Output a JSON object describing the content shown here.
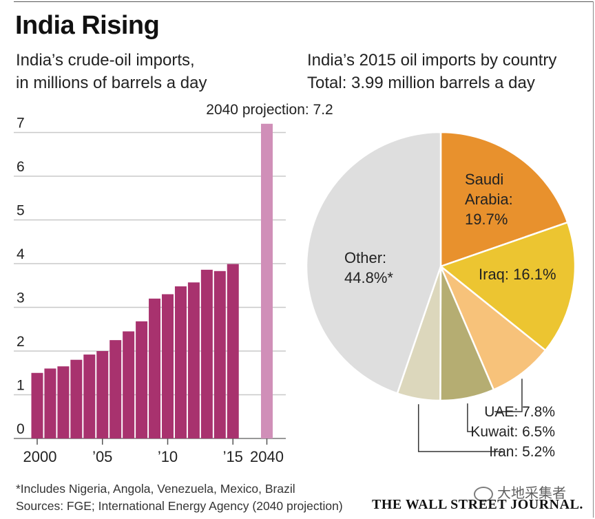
{
  "title": "India Rising",
  "left_subtitle": [
    "India’s crude-oil imports,",
    "in millions of barrels a day"
  ],
  "right_subtitle": [
    "India’s 2015 oil imports by country",
    "Total: 3.99 million barrels a day"
  ],
  "footnote": "*Includes Nigeria, Angola, Venezuela, Mexico, Brazil",
  "sources": "Sources: FGE; International Energy Agency (2040 projection)",
  "publisher": "THE WALL STREET JOURNAL.",
  "watermark": "大地采集者",
  "colors": {
    "bar": "#a8326e",
    "projection_bar": "#d08fb8",
    "grid": "#c8c8c8",
    "saudi": "#e8912d",
    "iraq": "#ecc531",
    "uae": "#f7c27a",
    "kuwait": "#b5ad72",
    "iran": "#dcd7bc",
    "other": "#dedede"
  },
  "chart_data": [
    {
      "type": "bar",
      "title": "India’s crude-oil imports, in millions of barrels a day",
      "x": [
        2000,
        2001,
        2002,
        2003,
        2004,
        2005,
        2006,
        2007,
        2008,
        2009,
        2010,
        2011,
        2012,
        2013,
        2014,
        2015
      ],
      "values": [
        1.5,
        1.6,
        1.65,
        1.8,
        1.92,
        2.0,
        2.25,
        2.45,
        2.68,
        3.2,
        3.3,
        3.48,
        3.57,
        3.86,
        3.83,
        3.99
      ],
      "projection": {
        "x": 2040,
        "value": 7.2,
        "label": "2040 projection: 7.2"
      },
      "y_ticks": [
        "0",
        "1",
        "2",
        "3",
        "4",
        "5",
        "6",
        "7"
      ],
      "x_tick_labels": [
        {
          "label": "2000",
          "x": 2000
        },
        {
          "label": "’05",
          "x": 2005
        },
        {
          "label": "’10",
          "x": 2010
        },
        {
          "label": "’15",
          "x": 2015
        },
        {
          "label": "2040",
          "x": 2040
        }
      ],
      "ylim": [
        0,
        7.2
      ],
      "grid": true
    },
    {
      "type": "pie",
      "title": "India’s 2015 oil imports by country",
      "total_label": "Total: 3.99 million barrels a day",
      "slices": [
        {
          "name": "Saudi Arabia",
          "value": 19.7,
          "label": [
            "Saudi",
            "Arabia:",
            "19.7%"
          ],
          "color_key": "saudi",
          "label_inside": true
        },
        {
          "name": "Iraq",
          "value": 16.1,
          "label": [
            "Iraq: 16.1%"
          ],
          "color_key": "iraq",
          "label_inside": true
        },
        {
          "name": "UAE",
          "value": 7.8,
          "label": [
            "UAE: 7.8%"
          ],
          "color_key": "uae",
          "label_inside": false
        },
        {
          "name": "Kuwait",
          "value": 6.5,
          "label": [
            "Kuwait: 6.5%"
          ],
          "color_key": "kuwait",
          "label_inside": false
        },
        {
          "name": "Iran",
          "value": 5.2,
          "label": [
            "Iran: 5.2%"
          ],
          "color_key": "iran",
          "label_inside": false
        },
        {
          "name": "Other",
          "value": 44.8,
          "label": [
            "Other:",
            "44.8%*"
          ],
          "color_key": "other",
          "label_inside": true
        }
      ]
    }
  ]
}
